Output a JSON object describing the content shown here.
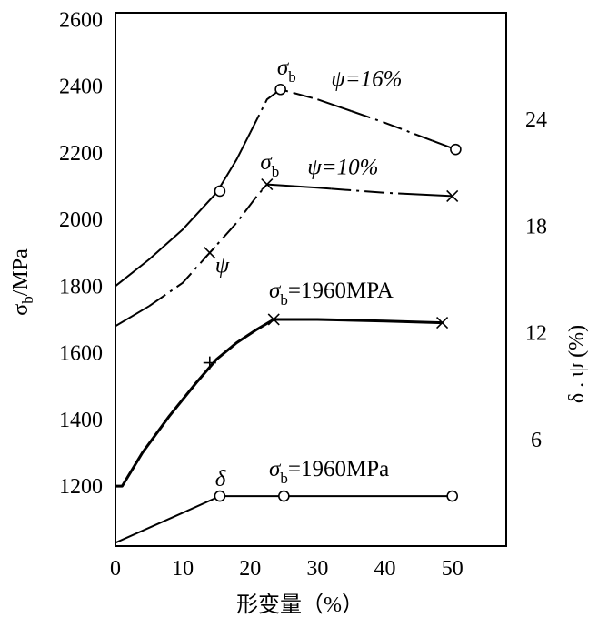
{
  "chart_data": {
    "type": "line",
    "xlabel": "形变量（%）",
    "ylabel_main": "σ",
    "ylabel_sub": "b",
    "ylabel_unit": "/MPa",
    "y2label": "δ . ψ (%)",
    "x_ticks": [
      "0",
      "10",
      "20",
      "30",
      "40",
      "50"
    ],
    "x_tick_values": [
      0,
      10,
      20,
      30,
      40,
      50
    ],
    "y_ticks": [
      "1200",
      "1400",
      "1600",
      "1800",
      "2000",
      "2200",
      "2400",
      "2600"
    ],
    "y_tick_values": [
      1200,
      1400,
      1600,
      1800,
      2000,
      2200,
      2400,
      2600
    ],
    "y2_ticks": [
      "6",
      "12",
      "18",
      "24"
    ],
    "y2_tick_values": [
      6,
      12,
      18,
      24
    ],
    "xlim": [
      0,
      58
    ],
    "ylim": [
      1020,
      2620
    ],
    "y2lim": [
      0,
      30
    ],
    "series": [
      {
        "style": "dashdot",
        "marker": "circle",
        "curve": [
          [
            0,
            1800
          ],
          [
            5,
            1880
          ],
          [
            10,
            1970
          ],
          [
            15,
            2080
          ],
          [
            18,
            2180
          ],
          [
            20,
            2260
          ],
          [
            22.5,
            2360
          ],
          [
            24.5,
            2390
          ],
          [
            30,
            2360
          ],
          [
            40,
            2290
          ],
          [
            50.5,
            2210
          ]
        ],
        "markers": [
          [
            15.5,
            2085
          ],
          [
            24.5,
            2390
          ],
          [
            50.5,
            2210
          ]
        ],
        "dashed_ranges": [
          [
            20,
            30
          ],
          [
            35,
            47
          ]
        ]
      },
      {
        "style": "dashdot",
        "marker": "x",
        "curve": [
          [
            0,
            1680
          ],
          [
            5,
            1740
          ],
          [
            10,
            1810
          ],
          [
            14,
            1900
          ],
          [
            18,
            1990
          ],
          [
            21,
            2070
          ],
          [
            22.5,
            2105
          ],
          [
            30,
            2095
          ],
          [
            40,
            2080
          ],
          [
            50,
            2070
          ]
        ],
        "markers": [
          [
            14,
            1900
          ],
          [
            22.5,
            2105
          ],
          [
            50,
            2070
          ]
        ],
        "dashed_ranges": [
          [
            5,
            22
          ],
          [
            32,
            42
          ]
        ]
      },
      {
        "style": "solid-thick",
        "marker": "x",
        "curve": [
          [
            0,
            1200
          ],
          [
            1,
            1200
          ],
          [
            4,
            1300
          ],
          [
            8,
            1410
          ],
          [
            12,
            1510
          ],
          [
            15,
            1580
          ],
          [
            18,
            1630
          ],
          [
            21,
            1670
          ],
          [
            23.5,
            1700
          ],
          [
            30,
            1700
          ],
          [
            40,
            1695
          ],
          [
            48.5,
            1690
          ]
        ],
        "markers": [
          [
            23.5,
            1700
          ],
          [
            48.5,
            1690
          ]
        ],
        "plus_markers": [
          [
            14,
            1570
          ]
        ],
        "dashed_ranges": []
      },
      {
        "style": "solid",
        "marker": "circle",
        "curve": [
          [
            0,
            1030
          ],
          [
            10,
            1120
          ],
          [
            15.5,
            1170
          ],
          [
            25,
            1170
          ],
          [
            50,
            1170
          ]
        ],
        "markers": [
          [
            15.5,
            1170
          ],
          [
            25,
            1170
          ],
          [
            50,
            1170
          ]
        ],
        "dashed_ranges": []
      }
    ],
    "annotations": [
      {
        "text": "σ",
        "sub": "b",
        "after": "",
        "x": 24,
        "y": 2435
      },
      {
        "text": "ψ=16%",
        "sub": "",
        "after": "",
        "x": 32,
        "y": 2400
      },
      {
        "text": "σ",
        "sub": "b",
        "after": "",
        "x": 21.5,
        "y": 2150
      },
      {
        "text": "ψ=10%",
        "sub": "",
        "after": "",
        "x": 28.5,
        "y": 2135
      },
      {
        "text": "ψ",
        "sub": "",
        "after": "",
        "x": 14.8,
        "y": 1840
      },
      {
        "text": "σ",
        "sub": "b",
        "after": "=1960MPA",
        "x": 22.8,
        "y": 1765
      },
      {
        "text": "δ",
        "sub": "",
        "after": "",
        "x": 14.8,
        "y": 1200
      },
      {
        "text": "σ",
        "sub": "b",
        "after": "=1960MPa",
        "x": 22.8,
        "y": 1230
      }
    ],
    "grid": false
  }
}
